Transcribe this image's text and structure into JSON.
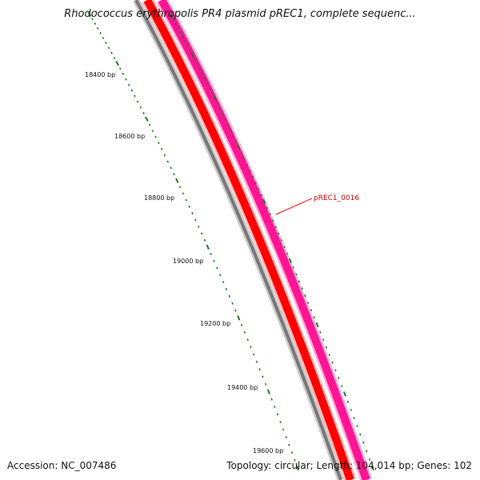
{
  "title": "Rhodococcus erythropolis PR4 plasmid pREC1, complete sequenc...",
  "footer": {
    "accession_text": "Accession: NC_007486",
    "summary_text": "Topology: circular; Length: 104,014 bp; Genes: 102"
  },
  "ruler": {
    "labels": [
      "18400 bp",
      "18600 bp",
      "18800 bp",
      "19000 bp",
      "19200 bp",
      "19400 bp",
      "19600 bp"
    ]
  },
  "genes": [
    {
      "label": "pREC1_0016",
      "color": "#cc0000"
    }
  ],
  "colors": {
    "backbone": "#777777",
    "forward_strand": "#ff0000",
    "reverse_strand": "#ff1493",
    "ticks": "#1a7a1a",
    "label_line": "#ff0000"
  }
}
